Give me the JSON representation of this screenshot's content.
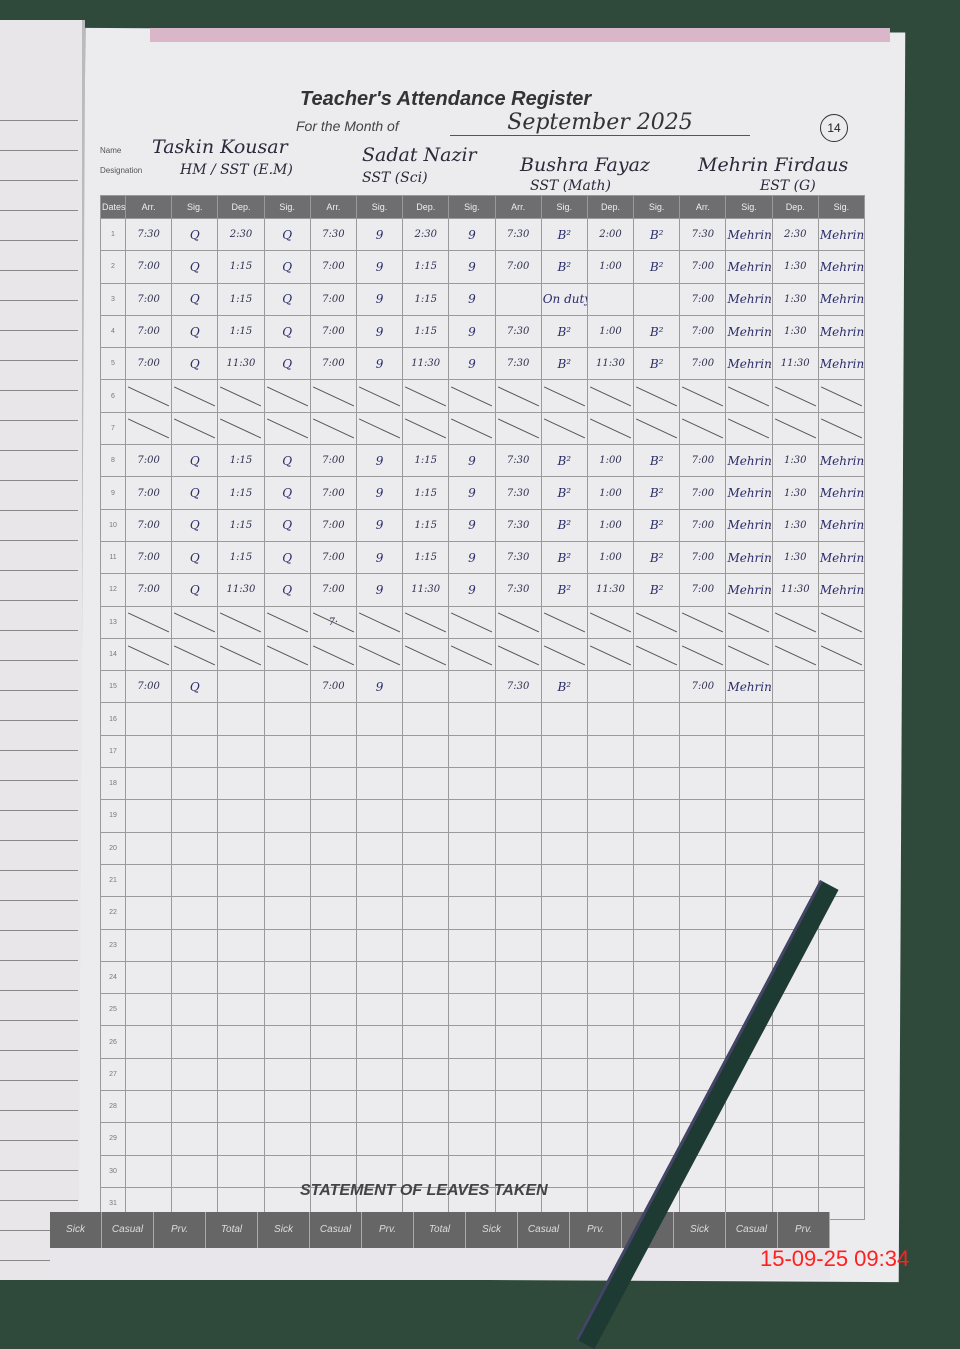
{
  "register": {
    "title": "Teacher's Attendance Register",
    "month_label": "For the Month of",
    "month_value": "September 2025",
    "page_number": "14",
    "name_label": "Name",
    "designation_label": "Designation",
    "teachers": [
      {
        "name": "Taskin Kousar",
        "designation": "HM / SST (E.M)"
      },
      {
        "name": "Sadat Nazir",
        "designation": "SST (Sci)"
      },
      {
        "name": "Bushra Fayaz",
        "designation": "SST (Math)"
      },
      {
        "name": "Mehrin Firdaus",
        "designation": "EST (G)"
      }
    ],
    "columns": [
      "Dates",
      "Arr.",
      "Sig.",
      "Dep.",
      "Sig.",
      "Arr.",
      "Sig.",
      "Dep.",
      "Sig.",
      "Arr.",
      "Sig.",
      "Dep.",
      "Sig.",
      "Arr.",
      "Sig.",
      "Dep.",
      "Sig."
    ],
    "rows": [
      {
        "date": "1",
        "cells": [
          "7:30",
          "Q",
          "2:30",
          "Q",
          "7:30",
          "9",
          "2:30",
          "9",
          "7:30",
          "B²",
          "2:00",
          "B²",
          "7:30",
          "Mehrin",
          "2:30",
          "Mehrin"
        ]
      },
      {
        "date": "2",
        "cells": [
          "7:00",
          "Q",
          "1:15",
          "Q",
          "7:00",
          "9",
          "1:15",
          "9",
          "7:00",
          "B²",
          "1:00",
          "B²",
          "7:00",
          "Mehrin",
          "1:30",
          "Mehrin"
        ]
      },
      {
        "date": "3",
        "cells": [
          "7:00",
          "Q",
          "1:15",
          "Q",
          "7:00",
          "9",
          "1:15",
          "9",
          "",
          "On duty",
          "",
          "",
          "7:00",
          "Mehrin",
          "1:30",
          "Mehrin"
        ]
      },
      {
        "date": "4",
        "cells": [
          "7:00",
          "Q",
          "1:15",
          "Q",
          "7:00",
          "9",
          "1:15",
          "9",
          "7:30",
          "B²",
          "1:00",
          "B²",
          "7:00",
          "Mehrin",
          "1:30",
          "Mehrin"
        ]
      },
      {
        "date": "5",
        "cells": [
          "7:00",
          "Q",
          "11:30",
          "Q",
          "7:00",
          "9",
          "11:30",
          "9",
          "7:30",
          "B²",
          "11:30",
          "B²",
          "7:00",
          "Mehrin",
          "11:30",
          "Mehrin"
        ]
      },
      {
        "date": "6",
        "crossed": true,
        "cells": []
      },
      {
        "date": "7",
        "crossed": true,
        "cells": []
      },
      {
        "date": "8",
        "cells": [
          "7:00",
          "Q",
          "1:15",
          "Q",
          "7:00",
          "9",
          "1:15",
          "9",
          "7:30",
          "B²",
          "1:00",
          "B²",
          "7:00",
          "Mehrin",
          "1:30",
          "Mehrin"
        ]
      },
      {
        "date": "9",
        "cells": [
          "7:00",
          "Q",
          "1:15",
          "Q",
          "7:00",
          "9",
          "1:15",
          "9",
          "7:30",
          "B²",
          "1:00",
          "B²",
          "7:00",
          "Mehrin",
          "1:30",
          "Mehrin"
        ]
      },
      {
        "date": "10",
        "cells": [
          "7:00",
          "Q",
          "1:15",
          "Q",
          "7:00",
          "9",
          "1:15",
          "9",
          "7:30",
          "B²",
          "1:00",
          "B²",
          "7:00",
          "Mehrin",
          "1:30",
          "Mehrin"
        ]
      },
      {
        "date": "11",
        "cells": [
          "7:00",
          "Q",
          "1:15",
          "Q",
          "7:00",
          "9",
          "1:15",
          "9",
          "7:30",
          "B²",
          "1:00",
          "B²",
          "7:00",
          "Mehrin",
          "1:30",
          "Mehrin"
        ]
      },
      {
        "date": "12",
        "cells": [
          "7:00",
          "Q",
          "11:30",
          "Q",
          "7:00",
          "9",
          "11:30",
          "9",
          "7:30",
          "B²",
          "11:30",
          "B²",
          "7:00",
          "Mehrin",
          "11:30",
          "Mehrin"
        ]
      },
      {
        "date": "13",
        "crossed": true,
        "cells": [
          "",
          "",
          "",
          "",
          "7·"
        ]
      },
      {
        "date": "14",
        "crossed": true,
        "cells": []
      },
      {
        "date": "15",
        "cells": [
          "7:00",
          "Q",
          "",
          "",
          "7:00",
          "9",
          "",
          "",
          "7:30",
          "B²",
          "",
          "",
          "7:00",
          "Mehrin",
          "",
          ""
        ]
      },
      {
        "date": "16",
        "cells": []
      },
      {
        "date": "17",
        "cells": []
      },
      {
        "date": "18",
        "cells": []
      },
      {
        "date": "19",
        "cells": []
      },
      {
        "date": "20",
        "cells": []
      },
      {
        "date": "21",
        "cells": []
      },
      {
        "date": "22",
        "cells": []
      },
      {
        "date": "23",
        "cells": []
      },
      {
        "date": "24",
        "cells": []
      },
      {
        "date": "25",
        "cells": []
      },
      {
        "date": "26",
        "cells": []
      },
      {
        "date": "27",
        "cells": []
      },
      {
        "date": "28",
        "cells": []
      },
      {
        "date": "29",
        "cells": []
      },
      {
        "date": "30",
        "cells": []
      },
      {
        "date": "31",
        "cells": []
      }
    ]
  },
  "leaves": {
    "title": "STATEMENT OF LEAVES TAKEN",
    "columns": [
      "Sick",
      "Casual",
      "Prv.",
      "Total",
      "Sick",
      "Casual",
      "Prv.",
      "Total",
      "Sick",
      "Casual",
      "Prv.",
      "Total",
      "Sick",
      "Casual",
      "Prv."
    ]
  },
  "timestamp": "15-09-25  09:34"
}
